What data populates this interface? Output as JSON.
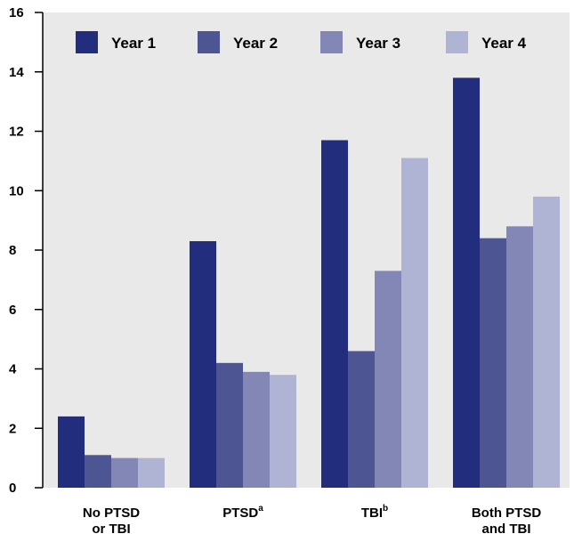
{
  "chart_data": {
    "type": "bar",
    "categories": [
      {
        "lines": [
          "No PTSD",
          "or TBI"
        ],
        "sup": ""
      },
      {
        "lines": [
          "PTSD"
        ],
        "sup": "a"
      },
      {
        "lines": [
          "TBI"
        ],
        "sup": "b"
      },
      {
        "lines": [
          "Both PTSD",
          "and TBI"
        ],
        "sup": ""
      }
    ],
    "series": [
      {
        "name": "Year 1",
        "color": "#232d7e",
        "values": [
          2.4,
          8.3,
          11.7,
          13.8
        ]
      },
      {
        "name": "Year 2",
        "color": "#4e5593",
        "values": [
          1.1,
          4.2,
          4.6,
          8.4
        ]
      },
      {
        "name": "Year 3",
        "color": "#8287b6",
        "values": [
          1.0,
          3.9,
          7.3,
          8.8
        ]
      },
      {
        "name": "Year 4",
        "color": "#b0b4d4",
        "values": [
          1.0,
          3.8,
          11.1,
          9.8
        ]
      }
    ],
    "ylim": [
      0,
      16
    ],
    "yticks": [
      "0",
      "2",
      "4",
      "6",
      "8",
      "10",
      "12",
      "14",
      "16"
    ],
    "background": "#e9e9e9",
    "legend_position": "top",
    "grid": false
  }
}
